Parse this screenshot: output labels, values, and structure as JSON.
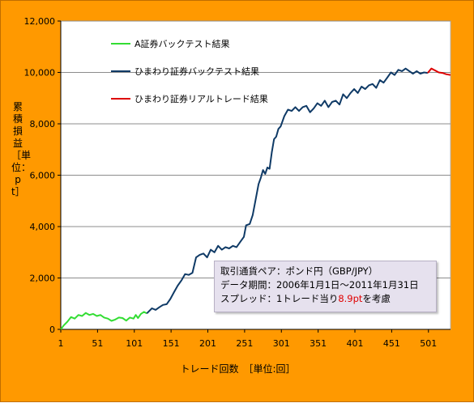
{
  "chart_data": {
    "type": "line",
    "ylabel": "累積損益［単位：pt］",
    "xlabel": "トレード回数　［単位:回］",
    "xlim": [
      1,
      531
    ],
    "ylim": [
      0,
      12000
    ],
    "x_ticks": [
      1,
      51,
      101,
      151,
      201,
      251,
      301,
      351,
      401,
      451,
      501
    ],
    "y_ticks": [
      0,
      2000,
      4000,
      6000,
      8000,
      10000,
      12000
    ],
    "y_tick_labels": [
      "0",
      "2,000",
      "4,000",
      "6,000",
      "8,000",
      "10,000",
      "12,000"
    ],
    "gridlines": "horizontal",
    "legend_position": "top-left",
    "series": [
      {
        "name": "A証券バックテスト結果",
        "color": "#33dd33",
        "points": [
          [
            1,
            0
          ],
          [
            5,
            150
          ],
          [
            10,
            300
          ],
          [
            15,
            480
          ],
          [
            20,
            420
          ],
          [
            25,
            560
          ],
          [
            30,
            520
          ],
          [
            35,
            640
          ],
          [
            40,
            560
          ],
          [
            45,
            600
          ],
          [
            50,
            520
          ],
          [
            55,
            560
          ],
          [
            60,
            460
          ],
          [
            65,
            420
          ],
          [
            70,
            330
          ],
          [
            75,
            380
          ],
          [
            80,
            460
          ],
          [
            85,
            440
          ],
          [
            90,
            340
          ],
          [
            95,
            460
          ],
          [
            100,
            420
          ],
          [
            103,
            560
          ],
          [
            106,
            440
          ],
          [
            110,
            600
          ],
          [
            114,
            680
          ],
          [
            118,
            620
          ]
        ]
      },
      {
        "name": "ひまわり証券バックテスト結果",
        "color": "#0f3a66",
        "points": [
          [
            118,
            620
          ],
          [
            125,
            820
          ],
          [
            130,
            760
          ],
          [
            135,
            860
          ],
          [
            140,
            950
          ],
          [
            145,
            980
          ],
          [
            150,
            1180
          ],
          [
            155,
            1450
          ],
          [
            160,
            1700
          ],
          [
            165,
            1900
          ],
          [
            170,
            2150
          ],
          [
            175,
            2120
          ],
          [
            180,
            2200
          ],
          [
            185,
            2800
          ],
          [
            190,
            2900
          ],
          [
            195,
            2950
          ],
          [
            200,
            2800
          ],
          [
            205,
            3100
          ],
          [
            210,
            3000
          ],
          [
            215,
            3250
          ],
          [
            220,
            3100
          ],
          [
            225,
            3200
          ],
          [
            230,
            3150
          ],
          [
            235,
            3250
          ],
          [
            240,
            3200
          ],
          [
            245,
            3400
          ],
          [
            250,
            3600
          ],
          [
            253,
            4050
          ],
          [
            258,
            4100
          ],
          [
            262,
            4450
          ],
          [
            266,
            5050
          ],
          [
            270,
            5650
          ],
          [
            273,
            5900
          ],
          [
            276,
            6200
          ],
          [
            279,
            6050
          ],
          [
            282,
            6300
          ],
          [
            285,
            6250
          ],
          [
            288,
            6900
          ],
          [
            291,
            7400
          ],
          [
            294,
            7500
          ],
          [
            297,
            7800
          ],
          [
            300,
            7900
          ],
          [
            305,
            8300
          ],
          [
            310,
            8550
          ],
          [
            315,
            8500
          ],
          [
            320,
            8650
          ],
          [
            325,
            8500
          ],
          [
            330,
            8650
          ],
          [
            335,
            8700
          ],
          [
            340,
            8450
          ],
          [
            345,
            8600
          ],
          [
            350,
            8800
          ],
          [
            355,
            8700
          ],
          [
            360,
            8900
          ],
          [
            365,
            8650
          ],
          [
            370,
            8850
          ],
          [
            375,
            8900
          ],
          [
            380,
            8750
          ],
          [
            385,
            9150
          ],
          [
            390,
            9000
          ],
          [
            395,
            9200
          ],
          [
            400,
            9350
          ],
          [
            405,
            9200
          ],
          [
            410,
            9450
          ],
          [
            415,
            9350
          ],
          [
            420,
            9500
          ],
          [
            425,
            9550
          ],
          [
            430,
            9400
          ],
          [
            435,
            9700
          ],
          [
            440,
            9600
          ],
          [
            445,
            9800
          ],
          [
            450,
            10000
          ],
          [
            455,
            9900
          ],
          [
            460,
            10100
          ],
          [
            465,
            10050
          ],
          [
            470,
            10150
          ],
          [
            475,
            10050
          ],
          [
            480,
            9950
          ],
          [
            485,
            10050
          ],
          [
            490,
            9950
          ],
          [
            495,
            10000
          ],
          [
            500,
            9980
          ]
        ]
      },
      {
        "name": "ひまわり証券リアルトレード結果",
        "color": "#dd0000",
        "points": [
          [
            500,
            9980
          ],
          [
            505,
            10150
          ],
          [
            510,
            10080
          ],
          [
            515,
            10000
          ],
          [
            520,
            9980
          ],
          [
            525,
            9930
          ],
          [
            531,
            9900
          ]
        ]
      }
    ],
    "annotation": {
      "line1": "取引通貨ペア：ポンド円（GBP/JPY）",
      "line2": "データ期間：2006年1月1日～2011年1月31日",
      "line3_prefix": "スプレッド：1トレード当り",
      "line3_highlight": "8.9pt",
      "line3_suffix": "を考慮",
      "highlight_color": "#e00000"
    }
  }
}
